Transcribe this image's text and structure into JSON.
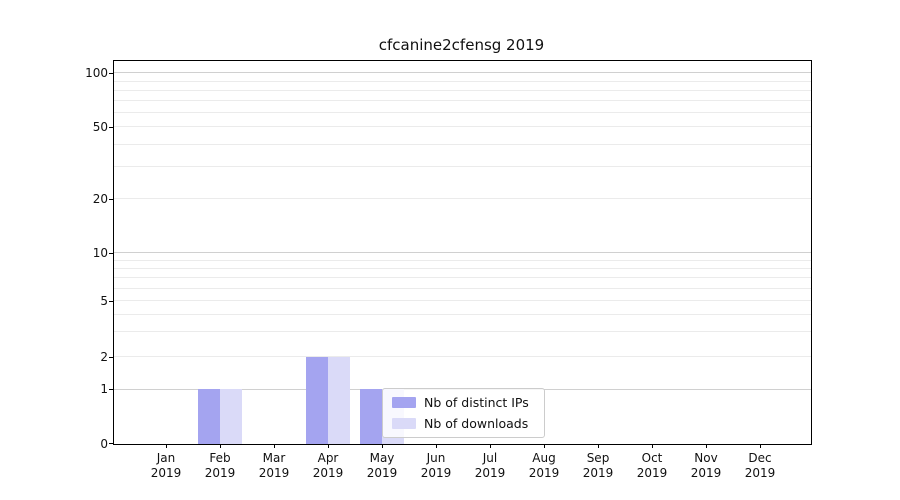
{
  "title": "cfcanine2cfensg 2019",
  "chart_data": {
    "type": "bar",
    "title": "cfcanine2cfensg 2019",
    "year": "2019",
    "categories": [
      "Jan",
      "Feb",
      "Mar",
      "Apr",
      "May",
      "Jun",
      "Jul",
      "Aug",
      "Sep",
      "Oct",
      "Nov",
      "Dec"
    ],
    "series": [
      {
        "name": "Nb of distinct IPs",
        "color": "#a4a4f0",
        "values": [
          0,
          1,
          0,
          2,
          1,
          0,
          0,
          0,
          0,
          0,
          0,
          0
        ]
      },
      {
        "name": "Nb of downloads",
        "color": "#dadaf8",
        "values": [
          0,
          1,
          0,
          2,
          1,
          0,
          0,
          0,
          0,
          0,
          0,
          0
        ]
      }
    ],
    "y_ticks": [
      0,
      1,
      2,
      5,
      10,
      20,
      50,
      100
    ],
    "y_minor_ticks": [
      3,
      4,
      6,
      7,
      8,
      9,
      30,
      40,
      60,
      70,
      80,
      90
    ],
    "ylim": [
      0,
      113
    ],
    "scale": "symlog",
    "grid": "horizontal major and minor",
    "legend_position": "inside lower-center"
  },
  "colors": {
    "spine": "#000000",
    "grid_major": "#d0d0d0",
    "grid_minor": "#ebebeb",
    "legend_border": "#cccccc",
    "legend_bg": "rgba(255,255,255,0.8)"
  }
}
